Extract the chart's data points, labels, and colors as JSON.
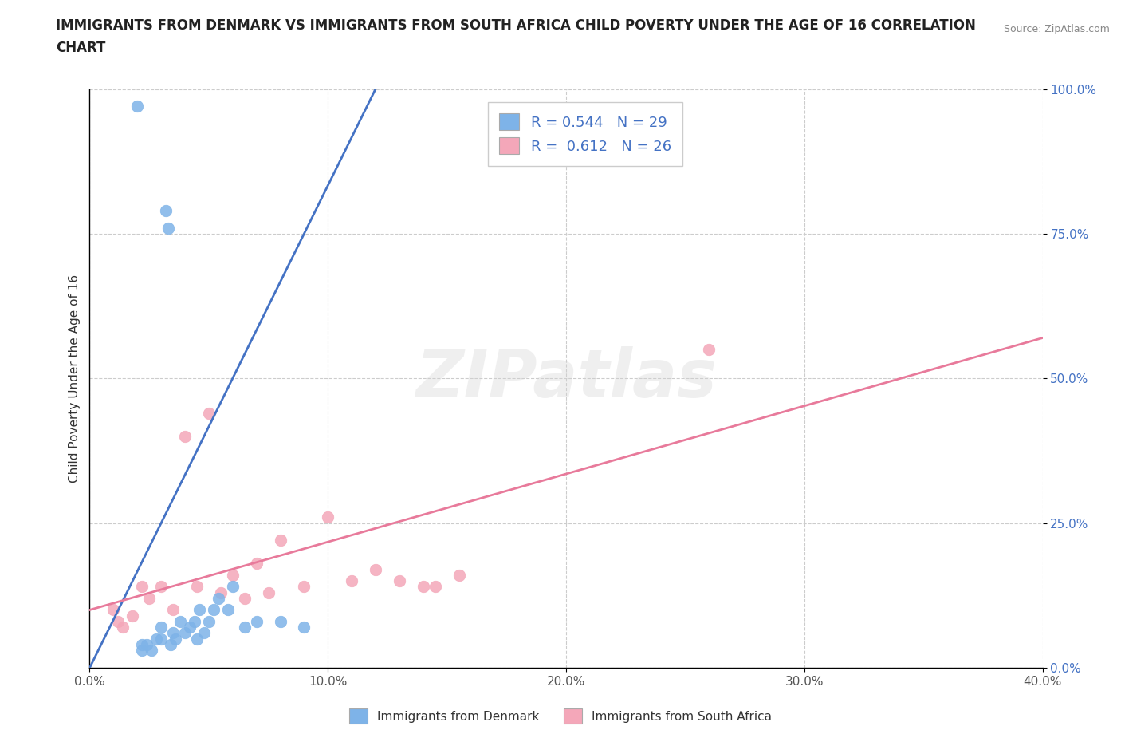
{
  "title_line1": "IMMIGRANTS FROM DENMARK VS IMMIGRANTS FROM SOUTH AFRICA CHILD POVERTY UNDER THE AGE OF 16 CORRELATION",
  "title_line2": "CHART",
  "ylabel": "Child Poverty Under the Age of 16",
  "source": "Source: ZipAtlas.com",
  "xlim": [
    0.0,
    0.4
  ],
  "ylim": [
    0.0,
    1.0
  ],
  "xticks": [
    0.0,
    0.1,
    0.2,
    0.3,
    0.4
  ],
  "yticks": [
    0.0,
    0.25,
    0.5,
    0.75,
    1.0
  ],
  "xticklabels": [
    "0.0%",
    "10.0%",
    "20.0%",
    "30.0%",
    "40.0%"
  ],
  "yticklabels": [
    "0.0%",
    "25.0%",
    "50.0%",
    "75.0%",
    "100.0%"
  ],
  "denmark_color": "#7EB3E8",
  "south_africa_color": "#F4A7B9",
  "denmark_line_color": "#4472C4",
  "south_africa_line_color": "#E87A9B",
  "denmark_R": 0.544,
  "denmark_N": 29,
  "south_africa_R": 0.612,
  "south_africa_N": 26,
  "legend_denmark": "Immigrants from Denmark",
  "legend_south_africa": "Immigrants from South Africa",
  "denmark_x": [
    0.02,
    0.022,
    0.022,
    0.024,
    0.026,
    0.028,
    0.03,
    0.03,
    0.032,
    0.033,
    0.034,
    0.035,
    0.036,
    0.038,
    0.04,
    0.042,
    0.044,
    0.045,
    0.046,
    0.048,
    0.05,
    0.052,
    0.054,
    0.058,
    0.06,
    0.065,
    0.07,
    0.08,
    0.09
  ],
  "denmark_y": [
    0.97,
    0.03,
    0.04,
    0.04,
    0.03,
    0.05,
    0.05,
    0.07,
    0.79,
    0.76,
    0.04,
    0.06,
    0.05,
    0.08,
    0.06,
    0.07,
    0.08,
    0.05,
    0.1,
    0.06,
    0.08,
    0.1,
    0.12,
    0.1,
    0.14,
    0.07,
    0.08,
    0.08,
    0.07
  ],
  "south_africa_x": [
    0.01,
    0.012,
    0.014,
    0.018,
    0.022,
    0.025,
    0.03,
    0.035,
    0.04,
    0.045,
    0.05,
    0.055,
    0.06,
    0.065,
    0.07,
    0.075,
    0.08,
    0.09,
    0.1,
    0.11,
    0.12,
    0.13,
    0.14,
    0.145,
    0.155,
    0.26
  ],
  "south_africa_y": [
    0.1,
    0.08,
    0.07,
    0.09,
    0.14,
    0.12,
    0.14,
    0.1,
    0.4,
    0.14,
    0.44,
    0.13,
    0.16,
    0.12,
    0.18,
    0.13,
    0.22,
    0.14,
    0.26,
    0.15,
    0.17,
    0.15,
    0.14,
    0.14,
    0.16,
    0.55
  ],
  "dk_trendline_x": [
    0.0,
    0.12
  ],
  "dk_trendline_y": [
    0.0,
    1.0
  ],
  "sa_trendline_x": [
    0.0,
    0.4
  ],
  "sa_trendline_y": [
    0.1,
    0.57
  ],
  "watermark_text": "ZIPatlas",
  "background_color": "#ffffff",
  "grid_color": "#cccccc"
}
